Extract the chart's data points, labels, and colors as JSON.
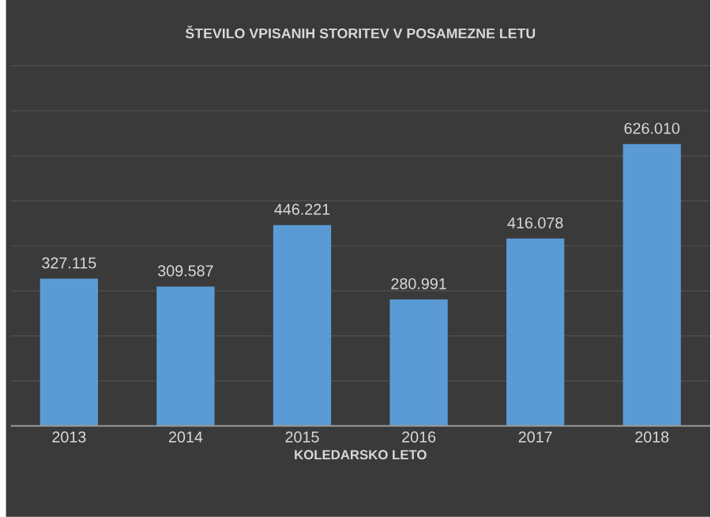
{
  "chart_data": {
    "type": "bar",
    "title": "ŠTEVILO VPISANIH STORITEV V POSAMEZNE LETU",
    "xlabel": "KOLEDARSKO LETO",
    "categories": [
      "2013",
      "2014",
      "2015",
      "2016",
      "2017",
      "2018"
    ],
    "values": [
      327115,
      309587,
      446221,
      280991,
      416078,
      626010
    ],
    "value_labels": [
      "327.115",
      "309.587",
      "446.221",
      "280.991",
      "416.078",
      "626.010"
    ],
    "color": "#5b9bd5",
    "ylim": [
      0,
      800000
    ],
    "yticks": [
      {
        "value": 0,
        "label": null
      },
      {
        "value": 100000,
        "label": null
      },
      {
        "value": 200000,
        "label": null
      },
      {
        "value": 300000,
        "label": null
      },
      {
        "value": 400000,
        "label": null
      },
      {
        "value": 500000,
        "label": null
      },
      {
        "value": 600000,
        "label": null
      },
      {
        "value": 700000,
        "label": null
      },
      {
        "value": 800000,
        "label": null
      }
    ],
    "grid": "y",
    "tick_labels": "x"
  }
}
